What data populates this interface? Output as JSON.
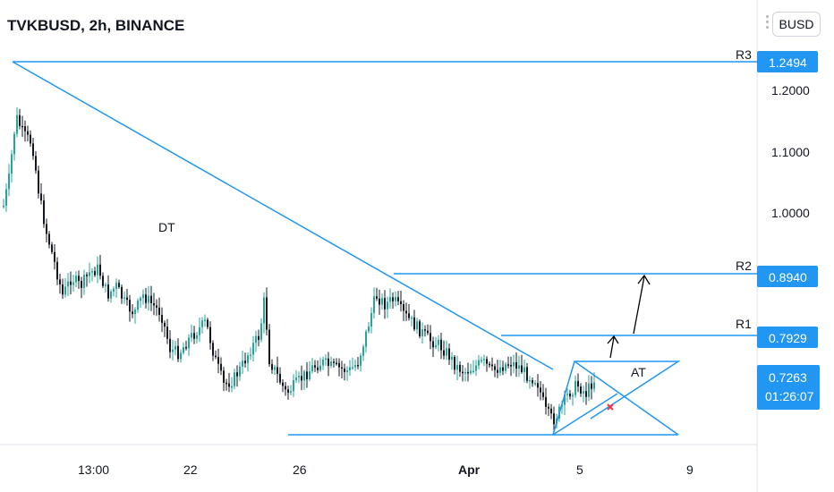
{
  "header": {
    "symbol_title": "TVKBUSD, 2h, BINANCE",
    "currency_button": "BUSD"
  },
  "chart_data": {
    "type": "candlestick",
    "title": "TVKBUSD, 2h, BINANCE",
    "y_axis": {
      "ticks": [
        "1.2000",
        "1.1000",
        "1.0000"
      ],
      "tick_values": [
        1.2,
        1.1,
        1.0
      ],
      "unit": "BUSD"
    },
    "x_axis": {
      "ticks": [
        "13:00",
        "22",
        "26",
        "Apr",
        "5",
        "9"
      ]
    },
    "price_labels": [
      {
        "name": "R3",
        "value": "1.2494",
        "level": 1.2494
      },
      {
        "name": "R2",
        "value": "0.8940",
        "level": 0.894
      },
      {
        "name": "R1",
        "value": "0.7929",
        "level": 0.7929
      }
    ],
    "current_price": {
      "value": "0.7263",
      "countdown": "01:26:07"
    },
    "annotations": {
      "descending_triangle_label": "DT",
      "ascending_triangle_label": "AT"
    },
    "colors": {
      "up": "#26a69a",
      "down": "#131722",
      "drawing": "#2196f3",
      "label_bg": "#2196f3",
      "arrow": "#000000",
      "cross": "#f23645"
    },
    "grid": false
  }
}
